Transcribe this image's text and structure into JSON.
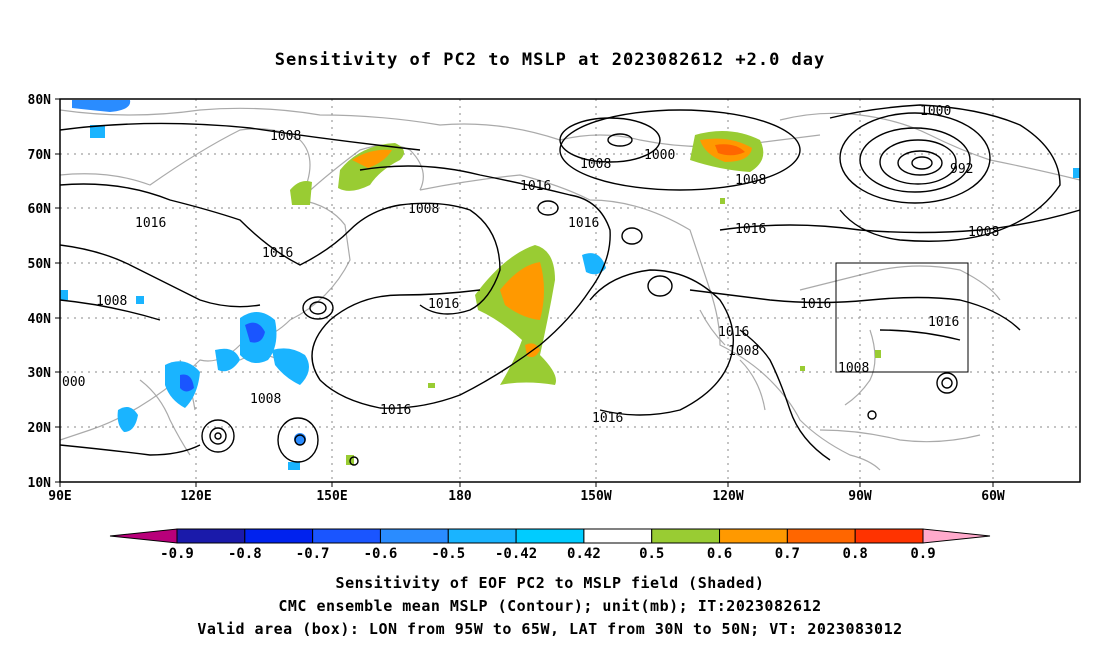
{
  "title": "Sensitivity of PC2 to MSLP at 2023082612 +2.0 day",
  "axes": {
    "lat_ticks": [
      "80N",
      "70N",
      "60N",
      "50N",
      "40N",
      "30N",
      "20N",
      "10N"
    ],
    "lon_ticks": [
      "90E",
      "120E",
      "150E",
      "180",
      "150W",
      "120W",
      "90W",
      "60W"
    ]
  },
  "contour_labels": [
    "1008",
    "1000",
    "1008",
    "1000",
    "992",
    "1016",
    "1008",
    "1016",
    "1016",
    "1008",
    "1016",
    "1016",
    "1008",
    "1016",
    "1016",
    "1008",
    "1008",
    "1016",
    "1016",
    "1008",
    "000"
  ],
  "valid_box": {
    "lon_range": "95W-65W",
    "lat_range": "30N-50N"
  },
  "colorbar": {
    "labels": [
      "-0.9",
      "-0.8",
      "-0.7",
      "-0.6",
      "-0.5",
      "-0.42",
      "0.42",
      "0.5",
      "0.6",
      "0.7",
      "0.8",
      "0.9"
    ],
    "colors": [
      "#1a1aaa",
      "#0022ee",
      "#1a55ff",
      "#2a8cff",
      "#1ab4ff",
      "#00ccff",
      "#ffffff",
      "#99cc33",
      "#ff9900",
      "#ff6600",
      "#ff3300",
      "#ff0000",
      "#ff99cc"
    ],
    "end_colors": {
      "left": "#b8007a",
      "right": "#ffaacc"
    }
  },
  "captions": {
    "line1": "Sensitivity of EOF PC2 to MSLP field (Shaded)",
    "line2": "CMC ensemble mean MSLP (Contour); unit(mb); IT:2023082612",
    "line3": "Valid area (box): LON from 95W to 65W, LAT from 30N to 50N; VT: 2023083012"
  }
}
